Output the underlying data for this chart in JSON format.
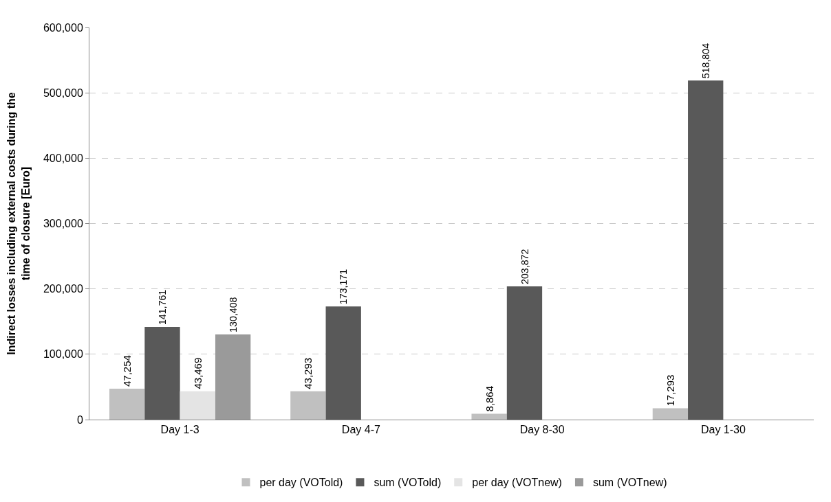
{
  "chart_data": {
    "type": "bar",
    "ylabel": "Indirect losses including external costs during the time of closure [Euro]",
    "categories": [
      "Day 1-3",
      "Day 4-7",
      "Day 8-30",
      "Day 1-30"
    ],
    "series": [
      {
        "name": "per day (VOTold)",
        "color": "#c0c0c0",
        "values": [
          47254,
          43293,
          8864,
          17293
        ],
        "value_labels": [
          "47,254",
          "43,293",
          "8,864",
          "17,293"
        ]
      },
      {
        "name": "sum (VOTold)",
        "color": "#595959",
        "values": [
          141761,
          173171,
          203872,
          518804
        ],
        "value_labels": [
          "141,761",
          "173,171",
          "203,872",
          "518,804"
        ]
      },
      {
        "name": "per day (VOTnew)",
        "color": "#e4e4e4",
        "values": [
          43469,
          null,
          null,
          null
        ],
        "value_labels": [
          "43,469",
          null,
          null,
          null
        ]
      },
      {
        "name": "sum (VOTnew)",
        "color": "#9a9a9a",
        "values": [
          130408,
          null,
          null,
          null
        ],
        "value_labels": [
          "130,408",
          null,
          null,
          null
        ]
      }
    ],
    "ylim": [
      0,
      600000
    ],
    "yticks": [
      0,
      {
        "value": 100000,
        "label": "100,000"
      },
      {
        "value": 200000,
        "label": "200,000"
      },
      {
        "value": 300000,
        "label": "300,000"
      },
      {
        "value": 400000,
        "label": "400,000"
      },
      {
        "value": 500000,
        "label": "500,000"
      },
      {
        "value": 600000,
        "label": "600,000"
      }
    ],
    "grid": "y",
    "line_style": "dashed",
    "legend": "bottom"
  }
}
